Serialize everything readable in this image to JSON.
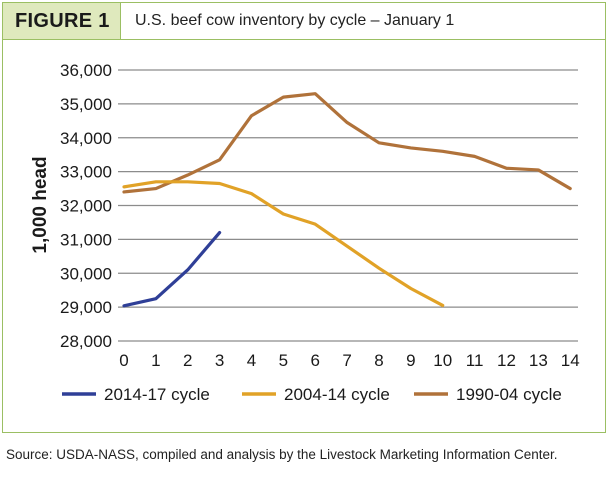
{
  "figure": {
    "label": "FIGURE 1",
    "title": "U.S. beef cow inventory by cycle – January 1"
  },
  "source_note": "Source: USDA-NASS, compiled and analysis by the Livestock Marketing Information Center.",
  "colors": {
    "border": "#9bbf63",
    "label_bg": "#dfe9bd",
    "gridline": "#8c8c8c",
    "series_2014": "#2f3f97",
    "series_2004": "#e1a227",
    "series_1990": "#b0723a"
  },
  "chart_data": {
    "type": "line",
    "title": "U.S. beef cow inventory by cycle – January 1",
    "xlabel": "",
    "ylabel": "1,000 head",
    "xlim": [
      0,
      14
    ],
    "ylim": [
      28000,
      36000
    ],
    "x_ticks": [
      "0",
      "1",
      "2",
      "3",
      "4",
      "5",
      "6",
      "7",
      "8",
      "9",
      "10",
      "11",
      "12",
      "13",
      "14"
    ],
    "y_ticks": [
      "28,000",
      "29,000",
      "30,000",
      "31,000",
      "32,000",
      "33,000",
      "34,000",
      "35,000",
      "36,000"
    ],
    "y_tick_values": [
      28000,
      29000,
      30000,
      31000,
      32000,
      33000,
      34000,
      35000,
      36000
    ],
    "grid": "horizontal",
    "legend_position": "bottom",
    "series": [
      {
        "name": "2014-17 cycle",
        "color": "#2f3f97",
        "x": [
          0,
          1,
          2,
          3
        ],
        "values": [
          29040,
          29250,
          30100,
          31200
        ]
      },
      {
        "name": "2004-14 cycle",
        "color": "#e1a227",
        "x": [
          0,
          1,
          2,
          3,
          4,
          5,
          6,
          7,
          8,
          9,
          10
        ],
        "values": [
          32550,
          32700,
          32700,
          32650,
          32350,
          31750,
          31450,
          30800,
          30150,
          29550,
          29050
        ]
      },
      {
        "name": "1990-04 cycle",
        "color": "#b0723a",
        "x": [
          0,
          1,
          2,
          3,
          4,
          5,
          6,
          7,
          8,
          9,
          10,
          11,
          12,
          13,
          14
        ],
        "values": [
          32400,
          32500,
          32900,
          33350,
          34650,
          35200,
          35300,
          34450,
          33850,
          33700,
          33600,
          33450,
          33100,
          33050,
          32500
        ]
      }
    ]
  }
}
